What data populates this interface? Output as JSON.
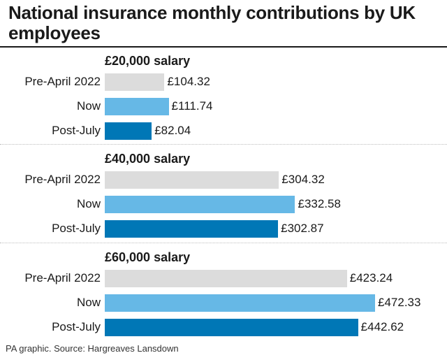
{
  "chart_data": {
    "type": "bar",
    "orientation": "horizontal",
    "title": "National insurance monthly contributions by UK employees",
    "source": "PA graphic. Source: Hargreaves Lansdown",
    "categories": [
      "Pre-April 2022",
      "Now",
      "Post-July"
    ],
    "colors": [
      "#dcdcdc",
      "#66b8e6",
      "#0077b6"
    ],
    "xlim": [
      0,
      480
    ],
    "value_prefix": "£",
    "groups": [
      {
        "name": "£20,000 salary",
        "values": [
          104.32,
          111.74,
          82.04
        ]
      },
      {
        "name": "£40,000 salary",
        "values": [
          304.32,
          332.58,
          302.87
        ]
      },
      {
        "name": "£60,000 salary",
        "values": [
          423.24,
          472.33,
          442.62
        ]
      }
    ]
  }
}
